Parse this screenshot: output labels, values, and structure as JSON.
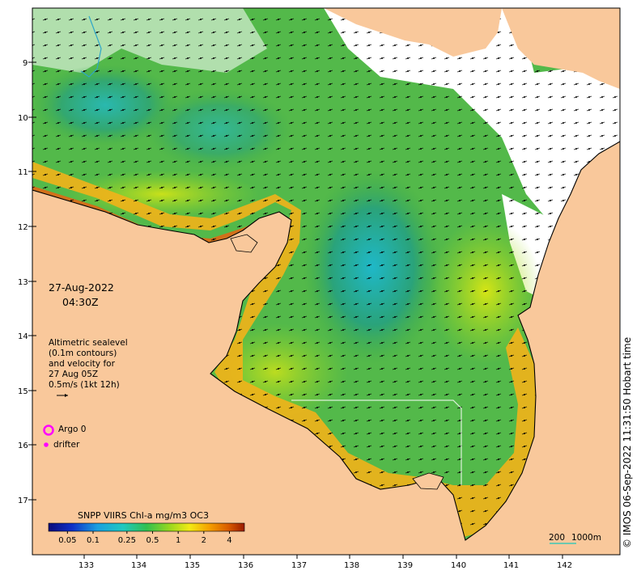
{
  "map": {
    "date": "27-Aug-2022",
    "time": "04:30Z",
    "legend_text": {
      "line1": "Altimetric sealevel",
      "line2": "(0.1m contours)",
      "line3": "and velocity for",
      "line4": "27 Aug 05Z",
      "line5": "0.5m/s (1kt 12h)"
    },
    "argo_label": "Argo 0",
    "drifter_label": "drifter",
    "colorbar": {
      "title": "SNPP VIIRS Chl-a mg/m3 OC3",
      "tick_labels": [
        "0.05",
        "0.1",
        "0.25",
        "0.5",
        "1",
        "2",
        "4"
      ],
      "tick_values": [
        0.05,
        0.1,
        0.25,
        0.5,
        1,
        2,
        4
      ],
      "min": 0.03,
      "max": 6,
      "colors": [
        "#0b0b7a",
        "#1030c8",
        "#1aa0e0",
        "#20c8c0",
        "#30c050",
        "#9ad81e",
        "#f2ea14",
        "#f5a000",
        "#d85a00",
        "#9a1b00"
      ]
    },
    "scale_bar": {
      "label_a": "200",
      "label_b": "1000m"
    },
    "credit": "© IMOS 06-Sep-2022 11:31:50 Hobart time",
    "lon_labels": [
      "133",
      "134",
      "135",
      "136",
      "137",
      "138",
      "139",
      "140",
      "141",
      "142"
    ],
    "lon_values": [
      133,
      134,
      135,
      136,
      137,
      138,
      139,
      140,
      141,
      142
    ],
    "lat_labels": [
      "9",
      "10",
      "11",
      "12",
      "13",
      "14",
      "15",
      "16",
      "17"
    ],
    "lat_values": [
      9,
      10,
      11,
      12,
      13,
      14,
      15,
      16,
      17
    ],
    "colors": {
      "land": "#f9c89b",
      "argo": "#ff00ff",
      "drifter": "#ff00ff",
      "scale": "#3fc8b6"
    }
  }
}
